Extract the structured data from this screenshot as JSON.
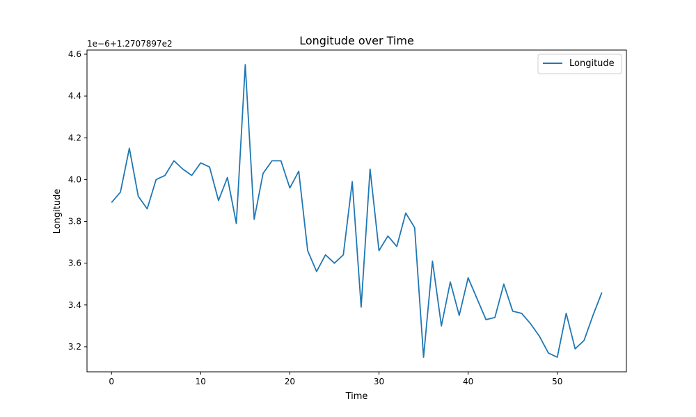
{
  "chart_data": {
    "type": "line",
    "title": "Longitude over Time",
    "xlabel": "Time",
    "ylabel": "Longitude",
    "y_offset_label": "1e−6+1.2707897e2",
    "xlim": [
      -2.75,
      57.75
    ],
    "ylim": [
      3.08,
      4.62
    ],
    "x_ticks": [
      0,
      10,
      20,
      30,
      40,
      50
    ],
    "x_tick_labels": [
      "0",
      "10",
      "20",
      "30",
      "40",
      "50"
    ],
    "y_ticks": [
      3.2,
      3.4,
      3.6,
      3.8,
      4.0,
      4.2,
      4.4,
      4.6
    ],
    "y_tick_labels": [
      "3.2",
      "3.4",
      "3.6",
      "3.8",
      "4.0",
      "4.2",
      "4.4",
      "4.6"
    ],
    "grid": false,
    "legend_position": "top-right",
    "series": [
      {
        "name": "Longitude",
        "color": "#1f77b4",
        "x": [
          0,
          1,
          2,
          3,
          4,
          5,
          6,
          7,
          8,
          9,
          10,
          11,
          12,
          13,
          14,
          15,
          16,
          17,
          18,
          19,
          20,
          21,
          22,
          23,
          24,
          25,
          26,
          27,
          28,
          29,
          30,
          31,
          32,
          33,
          34,
          35,
          36,
          37,
          38,
          39,
          40,
          41,
          42,
          43,
          44,
          45,
          46,
          47,
          48,
          49,
          50,
          51,
          52,
          53,
          54,
          55
        ],
        "y": [
          3.89,
          3.94,
          4.15,
          3.92,
          3.86,
          4.0,
          4.02,
          4.09,
          4.05,
          4.02,
          4.08,
          4.06,
          3.9,
          4.01,
          3.79,
          4.55,
          3.81,
          4.03,
          4.09,
          4.09,
          3.96,
          4.04,
          3.66,
          3.56,
          3.64,
          3.6,
          3.64,
          3.99,
          3.39,
          4.05,
          3.66,
          3.73,
          3.68,
          3.84,
          3.77,
          3.15,
          3.61,
          3.3,
          3.51,
          3.35,
          3.53,
          3.43,
          3.33,
          3.34,
          3.5,
          3.37,
          3.36,
          3.31,
          3.25,
          3.17,
          3.15,
          3.36,
          3.19,
          3.23,
          3.35,
          3.46
        ]
      }
    ]
  }
}
